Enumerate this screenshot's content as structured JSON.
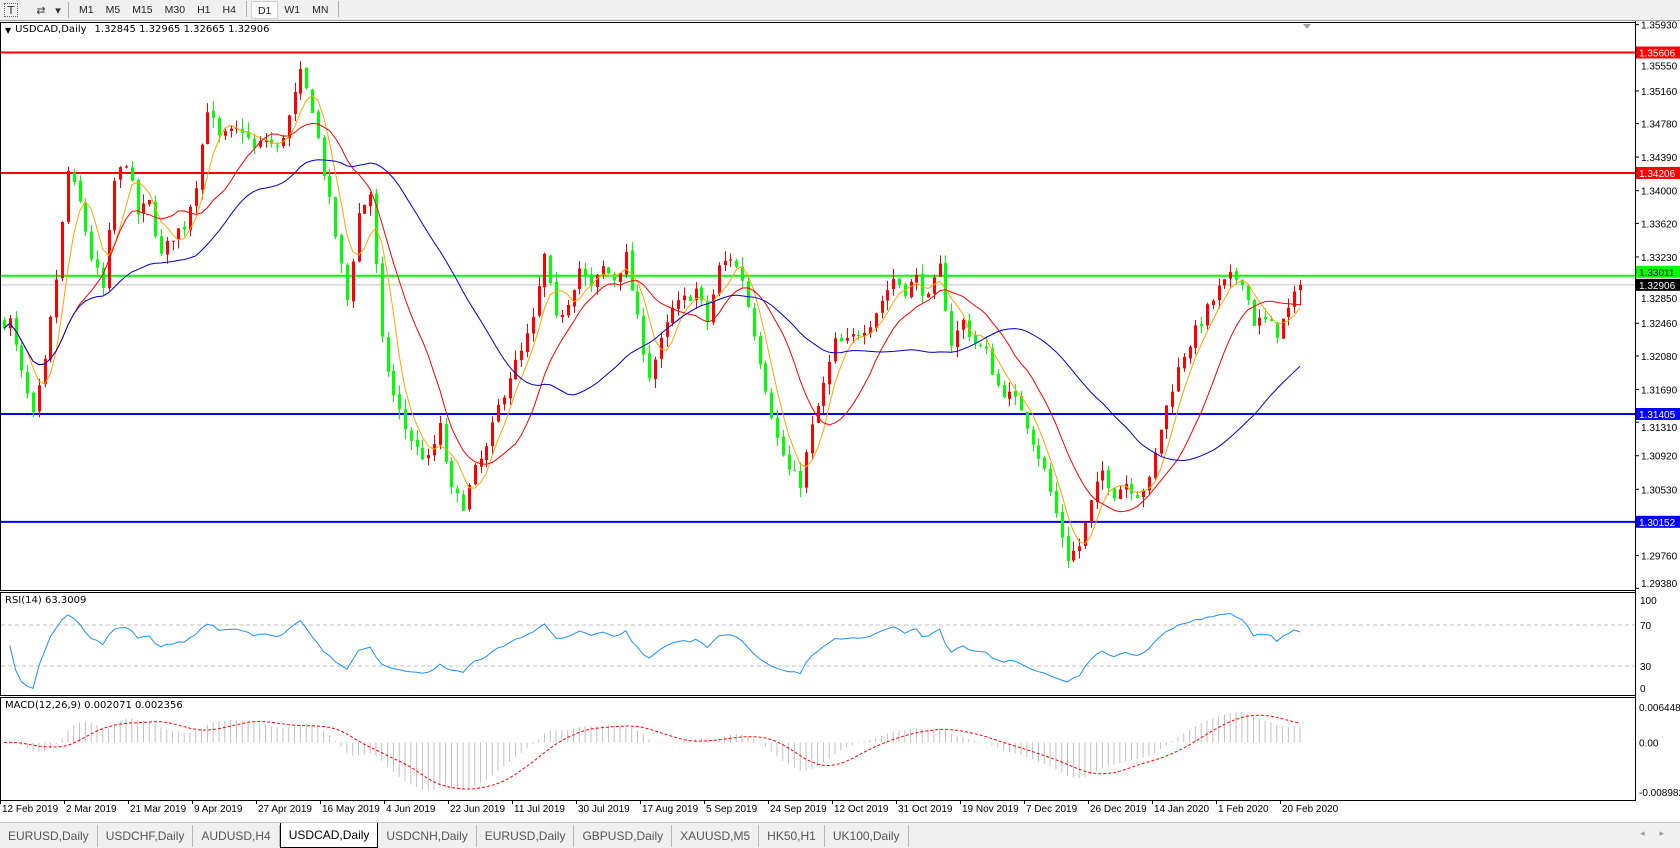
{
  "toolbar": {
    "icons": [
      "text-tool-icon",
      "chart-tools-icon",
      "dropdown-arrow-icon"
    ],
    "text_icon": "T",
    "tools_icon": "⇄",
    "dropdown_icon": "▾",
    "timeframes": [
      "M1",
      "M5",
      "M15",
      "M30",
      "H1",
      "H4",
      "D1",
      "W1",
      "MN"
    ],
    "active_timeframe": "D1"
  },
  "chart": {
    "symbol_label": "USDCAD,Daily",
    "ohlc_label": "1.32845 1.32965 1.32665 1.32906",
    "collapse_icon": "▼"
  },
  "chart_data": {
    "type": "candlestick",
    "symbol": "USDCAD",
    "timeframe": "Daily",
    "last_bar": {
      "open": 1.32845,
      "high": 1.32965,
      "low": 1.32665,
      "close": 1.32906
    },
    "closes": [
      1.3248,
      1.3248,
      1.3186,
      1.3136,
      1.3198,
      1.3298,
      1.3422,
      1.3385,
      1.3323,
      1.3285,
      1.341,
      1.3435,
      1.3373,
      1.3385,
      1.3323,
      1.3348,
      1.336,
      1.341,
      1.3497,
      1.346,
      1.3466,
      1.3472,
      1.3447,
      1.346,
      1.3447,
      1.3485,
      1.3534,
      1.3497,
      1.3422,
      1.3348,
      1.3273,
      1.3373,
      1.3397,
      1.3223,
      1.3161,
      1.3124,
      1.3099,
      1.3086,
      1.3124,
      1.3049,
      1.3036,
      1.3074,
      1.3099,
      1.3148,
      1.3186,
      1.3211,
      1.3248,
      1.3323,
      1.3248,
      1.3273,
      1.331,
      1.3285,
      1.331,
      1.3298,
      1.3323,
      1.3248,
      1.3186,
      1.3223,
      1.3261,
      1.3273,
      1.3285,
      1.3248,
      1.331,
      1.3323,
      1.3298,
      1.3236,
      1.3173,
      1.3111,
      1.3074,
      1.3061,
      1.3124,
      1.3173,
      1.3223,
      1.3223,
      1.3236,
      1.3248,
      1.3273,
      1.3298,
      1.3285,
      1.3298,
      1.3273,
      1.331,
      1.3223,
      1.3248,
      1.3223,
      1.3211,
      1.3173,
      1.3161,
      1.3148,
      1.3111,
      1.3074,
      1.3024,
      1.2974,
      1.2987,
      1.3036,
      1.3074,
      1.3049,
      1.3061,
      1.3049,
      1.3061,
      1.3124,
      1.3173,
      1.3211,
      1.3236,
      1.3261,
      1.3285,
      1.3298,
      1.3298,
      1.3248,
      1.3248,
      1.3236,
      1.3261,
      1.32906
    ],
    "y_range": [
      1.2938,
      1.3593
    ],
    "price_ticks": [
      "1.35930",
      "1.35550",
      "1.35160",
      "1.34780",
      "1.34390",
      "1.34000",
      "1.33620",
      "1.33230",
      "1.32850",
      "1.32460",
      "1.32080",
      "1.31690",
      "1.31310",
      "1.30920",
      "1.30530",
      "1.29760",
      "1.29380"
    ],
    "levels": [
      {
        "price": "1.35606",
        "color": "#ff0000"
      },
      {
        "price": "1.34206",
        "color": "#ff0000"
      },
      {
        "price": "1.33011",
        "color": "#00ff00"
      },
      {
        "price": "1.31405",
        "color": "#0000ff"
      },
      {
        "price": "1.30152",
        "color": "#0000ff"
      }
    ],
    "bid": {
      "price": "1.32906",
      "color": "#000000"
    },
    "bull_color": "#ff0000",
    "bear_color": "#00ff00",
    "ma_colors": [
      "#ffa500",
      "#ff0000",
      "#0000cc"
    ],
    "x_ticks": [
      "12 Feb 2019",
      "2 Mar 2019",
      "21 Mar 2019",
      "9 Apr 2019",
      "27 Apr 2019",
      "16 May 2019",
      "4 Jun 2019",
      "22 Jun 2019",
      "11 Jul 2019",
      "30 Jul 2019",
      "17 Aug 2019",
      "5 Sep 2019",
      "24 Sep 2019",
      "12 Oct 2019",
      "31 Oct 2019",
      "19 Nov 2019",
      "7 Dec 2019",
      "26 Dec 2019",
      "14 Jan 2020",
      "1 Feb 2020",
      "20 Feb 2020"
    ]
  },
  "rsi": {
    "label": "RSI(14) 63.3009",
    "ticks": [
      "100",
      "70",
      "30",
      "0"
    ],
    "levels": [
      70,
      30
    ],
    "color": "#1e90ff"
  },
  "macd": {
    "label": "MACD(12,26,9) 0.002071 0.002356",
    "ticks": [
      "0.006448",
      "0.00",
      "-0.008982"
    ],
    "range": [
      -0.008982,
      0.006448
    ],
    "signal_color": "#ff0000",
    "hist_color": "#c0c0c0"
  },
  "tabs": [
    {
      "label": "EURUSD,Daily"
    },
    {
      "label": "USDCHF,Daily"
    },
    {
      "label": "AUDUSD,H4"
    },
    {
      "label": "USDCAD,Daily",
      "active": true
    },
    {
      "label": "USDCNH,Daily"
    },
    {
      "label": "EURUSD,Daily"
    },
    {
      "label": "GBPUSD,Daily"
    },
    {
      "label": "XAUUSD,M5"
    },
    {
      "label": "HK50,H1"
    },
    {
      "label": "UK100,Daily"
    }
  ],
  "tab_scroll": "◂ ▸"
}
